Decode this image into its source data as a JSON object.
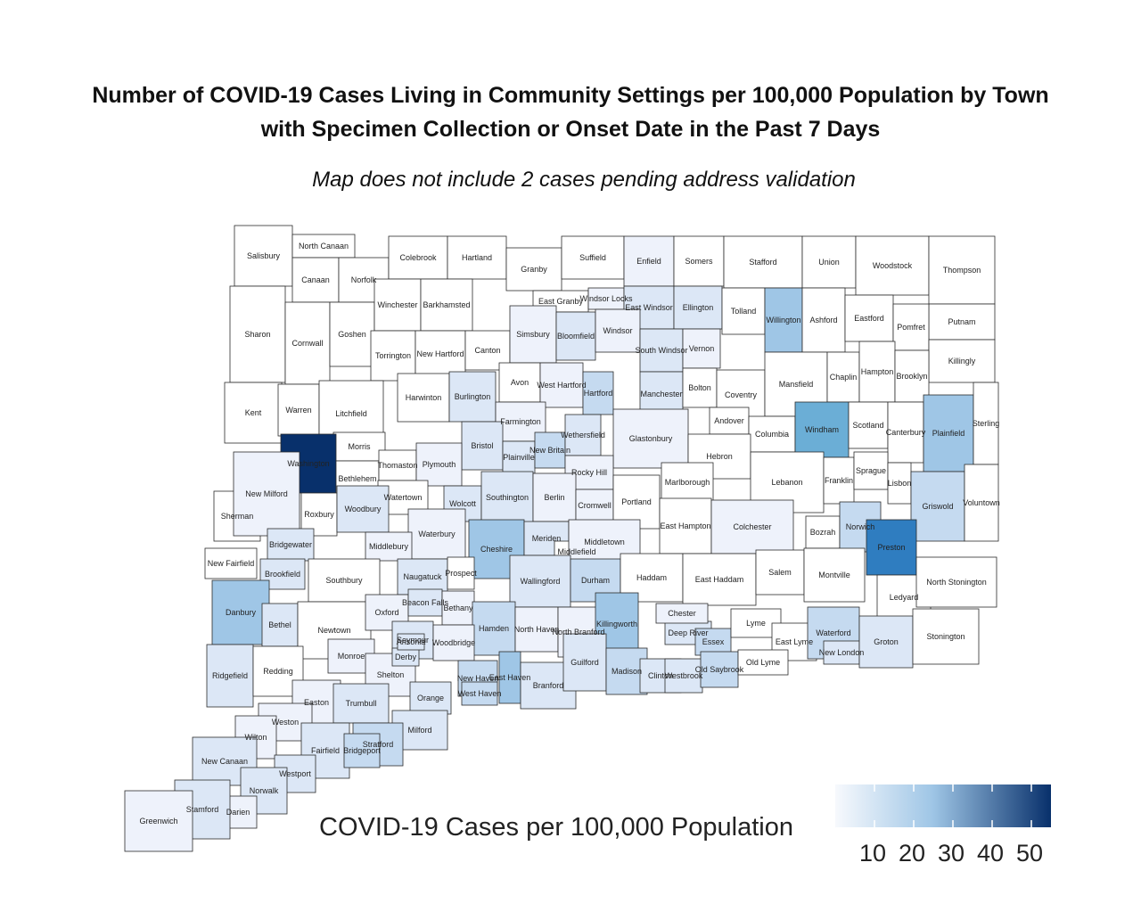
{
  "title_line1": "Number of COVID-19 Cases Living in Community Settings per 100,000 Population by Town",
  "title_line2": "with Specimen Collection or Onset Date in the Past 7 Days",
  "subtitle": "Map does not include 2 cases pending address validation",
  "legend": {
    "title": "COVID-19 Cases per 100,000 Population",
    "ticks": [
      "10",
      "20",
      "30",
      "40",
      "50"
    ],
    "color_low": "#f7f9fd",
    "color_high": "#08306b"
  },
  "palette": {
    "c0": "#ffffff",
    "c1": "#eef2fb",
    "c2": "#dce7f6",
    "c3": "#c5daf0",
    "c4": "#9fc6e6",
    "c5": "#6baed6",
    "c6": "#2f7dc0",
    "c7": "#08306b"
  },
  "chart_data": {
    "type": "choropleth",
    "value_field": "COVID-19 Cases per 100,000 Population",
    "scale": {
      "min": 0,
      "max": 55,
      "ticks": [
        10,
        20,
        30,
        40,
        50
      ]
    },
    "towns": [
      {
        "name": "Salisbury",
        "level": "c0"
      },
      {
        "name": "North Canaan",
        "level": "c0"
      },
      {
        "name": "Canaan",
        "level": "c0"
      },
      {
        "name": "Norfolk",
        "level": "c0"
      },
      {
        "name": "Colebrook",
        "level": "c0"
      },
      {
        "name": "Hartland",
        "level": "c0"
      },
      {
        "name": "Granby",
        "level": "c0"
      },
      {
        "name": "Suffield",
        "level": "c0"
      },
      {
        "name": "Enfield",
        "level": "c1"
      },
      {
        "name": "Somers",
        "level": "c0"
      },
      {
        "name": "Stafford",
        "level": "c0"
      },
      {
        "name": "Union",
        "level": "c0"
      },
      {
        "name": "Woodstock",
        "level": "c0"
      },
      {
        "name": "Thompson",
        "level": "c0"
      },
      {
        "name": "East Granby",
        "level": "c0"
      },
      {
        "name": "Windsor Locks",
        "level": "c1"
      },
      {
        "name": "East Windsor",
        "level": "c2"
      },
      {
        "name": "Ellington",
        "level": "c2"
      },
      {
        "name": "Tolland",
        "level": "c0"
      },
      {
        "name": "Willington",
        "level": "c4"
      },
      {
        "name": "Ashford",
        "level": "c0"
      },
      {
        "name": "Eastford",
        "level": "c0"
      },
      {
        "name": "Putnam",
        "level": "c0"
      },
      {
        "name": "Sharon",
        "level": "c0"
      },
      {
        "name": "Cornwall",
        "level": "c0"
      },
      {
        "name": "Goshen",
        "level": "c0"
      },
      {
        "name": "Winchester",
        "level": "c0"
      },
      {
        "name": "Barkhamsted",
        "level": "c0"
      },
      {
        "name": "Torrington",
        "level": "c0"
      },
      {
        "name": "New Hartford",
        "level": "c0"
      },
      {
        "name": "Canton",
        "level": "c0"
      },
      {
        "name": "Simsbury",
        "level": "c1"
      },
      {
        "name": "Bloomfield",
        "level": "c2"
      },
      {
        "name": "Windsor",
        "level": "c1"
      },
      {
        "name": "South Windsor",
        "level": "c2"
      },
      {
        "name": "Vernon",
        "level": "c1"
      },
      {
        "name": "Pomfret",
        "level": "c0"
      },
      {
        "name": "Killingly",
        "level": "c0"
      },
      {
        "name": "Avon",
        "level": "c0"
      },
      {
        "name": "West Hartford",
        "level": "c1"
      },
      {
        "name": "Hartford",
        "level": "c3"
      },
      {
        "name": "Manchester",
        "level": "c2"
      },
      {
        "name": "Bolton",
        "level": "c0"
      },
      {
        "name": "Coventry",
        "level": "c0"
      },
      {
        "name": "Mansfield",
        "level": "c0"
      },
      {
        "name": "Chaplin",
        "level": "c0"
      },
      {
        "name": "Hampton",
        "level": "c0"
      },
      {
        "name": "Brooklyn",
        "level": "c0"
      },
      {
        "name": "Kent",
        "level": "c0"
      },
      {
        "name": "Warren",
        "level": "c0"
      },
      {
        "name": "Litchfield",
        "level": "c0"
      },
      {
        "name": "Harwinton",
        "level": "c0"
      },
      {
        "name": "Burlington",
        "level": "c2"
      },
      {
        "name": "Farmington",
        "level": "c1"
      },
      {
        "name": "Andover",
        "level": "c0"
      },
      {
        "name": "Columbia",
        "level": "c0"
      },
      {
        "name": "Windham",
        "level": "c5"
      },
      {
        "name": "Scotland",
        "level": "c0"
      },
      {
        "name": "Canterbury",
        "level": "c0"
      },
      {
        "name": "Plainfield",
        "level": "c4"
      },
      {
        "name": "Sterling",
        "level": "c0"
      },
      {
        "name": "Morris",
        "level": "c0"
      },
      {
        "name": "Bristol",
        "level": "c2"
      },
      {
        "name": "Plainville",
        "level": "c2"
      },
      {
        "name": "New Britain",
        "level": "c3"
      },
      {
        "name": "Wethersfield",
        "level": "c2"
      },
      {
        "name": "Glastonbury",
        "level": "c1"
      },
      {
        "name": "Hebron",
        "level": "c0"
      },
      {
        "name": "Washington",
        "level": "c7"
      },
      {
        "name": "Bethlehem",
        "level": "c0"
      },
      {
        "name": "Thomaston",
        "level": "c0"
      },
      {
        "name": "Plymouth",
        "level": "c1"
      },
      {
        "name": "Rocky Hill",
        "level": "c1"
      },
      {
        "name": "Marlborough",
        "level": "c0"
      },
      {
        "name": "Lebanon",
        "level": "c0"
      },
      {
        "name": "Franklin",
        "level": "c0"
      },
      {
        "name": "Sprague",
        "level": "c0"
      },
      {
        "name": "Lisbon",
        "level": "c0"
      },
      {
        "name": "Griswold",
        "level": "c3"
      },
      {
        "name": "Voluntown",
        "level": "c0"
      },
      {
        "name": "Sherman",
        "level": "c0"
      },
      {
        "name": "New Milford",
        "level": "c1"
      },
      {
        "name": "Watertown",
        "level": "c0"
      },
      {
        "name": "Wolcott",
        "level": "c2"
      },
      {
        "name": "Southington",
        "level": "c2"
      },
      {
        "name": "Berlin",
        "level": "c1"
      },
      {
        "name": "Cromwell",
        "level": "c1"
      },
      {
        "name": "Portland",
        "level": "c0"
      },
      {
        "name": "East Hampton",
        "level": "c0"
      },
      {
        "name": "Colchester",
        "level": "c1"
      },
      {
        "name": "Roxbury",
        "level": "c0"
      },
      {
        "name": "Woodbury",
        "level": "c2"
      },
      {
        "name": "Waterbury",
        "level": "c1"
      },
      {
        "name": "Bozrah",
        "level": "c0"
      },
      {
        "name": "Norwich",
        "level": "c3"
      },
      {
        "name": "Bridgewater",
        "level": "c2"
      },
      {
        "name": "Middlebury",
        "level": "c1"
      },
      {
        "name": "Cheshire",
        "level": "c4"
      },
      {
        "name": "Meriden",
        "level": "c2"
      },
      {
        "name": "Middlefield",
        "level": "c0"
      },
      {
        "name": "Middletown",
        "level": "c1"
      },
      {
        "name": "Preston",
        "level": "c6"
      },
      {
        "name": "New Fairfield",
        "level": "c0"
      },
      {
        "name": "Brookfield",
        "level": "c2"
      },
      {
        "name": "Southbury",
        "level": "c0"
      },
      {
        "name": "Naugatuck",
        "level": "c2"
      },
      {
        "name": "Prospect",
        "level": "c0"
      },
      {
        "name": "Wallingford",
        "level": "c2"
      },
      {
        "name": "Durham",
        "level": "c3"
      },
      {
        "name": "Haddam",
        "level": "c0"
      },
      {
        "name": "East Haddam",
        "level": "c0"
      },
      {
        "name": "Salem",
        "level": "c0"
      },
      {
        "name": "Montville",
        "level": "c0"
      },
      {
        "name": "Ledyard",
        "level": "c0"
      },
      {
        "name": "North Stonington",
        "level": "c0"
      },
      {
        "name": "Danbury",
        "level": "c4"
      },
      {
        "name": "Bethel",
        "level": "c2"
      },
      {
        "name": "Newtown",
        "level": "c0"
      },
      {
        "name": "Oxford",
        "level": "c1"
      },
      {
        "name": "Beacon Falls",
        "level": "c2"
      },
      {
        "name": "Bethany",
        "level": "c1"
      },
      {
        "name": "Hamden",
        "level": "c3"
      },
      {
        "name": "North Haven",
        "level": "c1"
      },
      {
        "name": "North Branford",
        "level": "c1"
      },
      {
        "name": "Killingworth",
        "level": "c4"
      },
      {
        "name": "Deep River",
        "level": "c2"
      },
      {
        "name": "Chester",
        "level": "c1"
      },
      {
        "name": "Essex",
        "level": "c3"
      },
      {
        "name": "Lyme",
        "level": "c0"
      },
      {
        "name": "East Lyme",
        "level": "c0"
      },
      {
        "name": "Waterford",
        "level": "c3"
      },
      {
        "name": "New London",
        "level": "c2"
      },
      {
        "name": "Groton",
        "level": "c2"
      },
      {
        "name": "Stonington",
        "level": "c0"
      },
      {
        "name": "Ridgefield",
        "level": "c2"
      },
      {
        "name": "Redding",
        "level": "c0"
      },
      {
        "name": "Monroe",
        "level": "c1"
      },
      {
        "name": "Seymour",
        "level": "c2"
      },
      {
        "name": "Shelton",
        "level": "c1"
      },
      {
        "name": "Woodbridge",
        "level": "c1"
      },
      {
        "name": "Derby",
        "level": "c2"
      },
      {
        "name": "Ansonia",
        "level": "c2"
      },
      {
        "name": "New Haven",
        "level": "c3"
      },
      {
        "name": "East Haven",
        "level": "c4"
      },
      {
        "name": "West Haven",
        "level": "c3"
      },
      {
        "name": "Branford",
        "level": "c2"
      },
      {
        "name": "Guilford",
        "level": "c2"
      },
      {
        "name": "Madison",
        "level": "c3"
      },
      {
        "name": "Clinton",
        "level": "c2"
      },
      {
        "name": "Westbrook",
        "level": "c2"
      },
      {
        "name": "Old Saybrook",
        "level": "c3"
      },
      {
        "name": "Old Lyme",
        "level": "c0"
      },
      {
        "name": "Easton",
        "level": "c1"
      },
      {
        "name": "Trumbull",
        "level": "c2"
      },
      {
        "name": "Orange",
        "level": "c2"
      },
      {
        "name": "Milford",
        "level": "c2"
      },
      {
        "name": "Weston",
        "level": "c1"
      },
      {
        "name": "Wilton",
        "level": "c1"
      },
      {
        "name": "Fairfield",
        "level": "c2"
      },
      {
        "name": "Stratford",
        "level": "c3"
      },
      {
        "name": "Bridgeport",
        "level": "c3"
      },
      {
        "name": "New Canaan",
        "level": "c2"
      },
      {
        "name": "Westport",
        "level": "c2"
      },
      {
        "name": "Norwalk",
        "level": "c2"
      },
      {
        "name": "Darien",
        "level": "c1"
      },
      {
        "name": "Stamford",
        "level": "c2"
      },
      {
        "name": "Greenwich",
        "level": "c1"
      }
    ]
  }
}
